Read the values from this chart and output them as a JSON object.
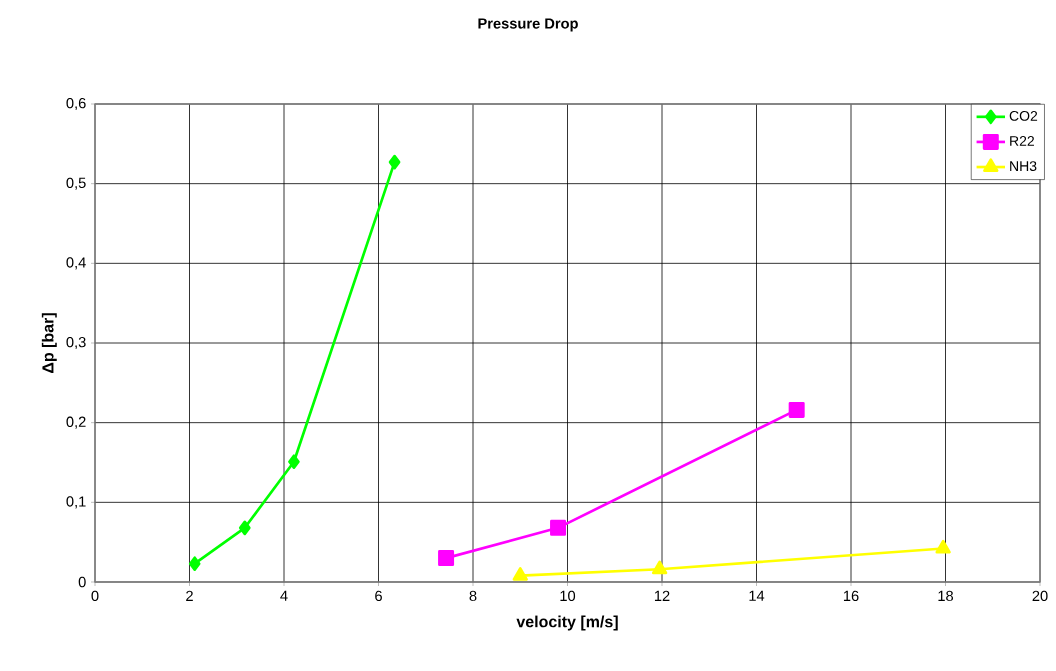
{
  "chart_data": {
    "type": "line",
    "title": "Pressure Drop",
    "xlabel": "velocity [m/s]",
    "ylabel": "Δp [bar]",
    "series": [
      {
        "name": "CO2",
        "color": "#00ff00",
        "marker": "diamond",
        "x": [
          2.11,
          3.17,
          4.21,
          6.34
        ],
        "values": [
          0.023,
          0.068,
          0.151,
          0.527
        ]
      },
      {
        "name": "R22",
        "color": "#ff00ff",
        "marker": "square",
        "x": [
          7.43,
          9.8,
          14.85
        ],
        "values": [
          0.03,
          0.068,
          0.216
        ]
      },
      {
        "name": "NH3",
        "color": "#ffff00",
        "marker": "triangle",
        "x": [
          9.0,
          11.95,
          17.95
        ],
        "values": [
          0.008,
          0.016,
          0.042
        ]
      }
    ],
    "xlim": [
      0,
      20
    ],
    "xticks": [
      0,
      2,
      4,
      6,
      8,
      10,
      12,
      14,
      16,
      18,
      20
    ],
    "ylim": [
      0,
      0.6
    ],
    "yticks": [
      0,
      {
        "value": 0.1,
        "label": "0,1"
      },
      {
        "value": 0.2,
        "label": "0,2"
      },
      {
        "value": 0.3,
        "label": "0,3"
      },
      {
        "value": 0.4,
        "label": "0,4"
      },
      {
        "value": 0.5,
        "label": "0,5"
      },
      {
        "value": 0.6,
        "label": "0,6"
      }
    ],
    "grid": true,
    "legend": "top right",
    "line_style": "solid"
  }
}
